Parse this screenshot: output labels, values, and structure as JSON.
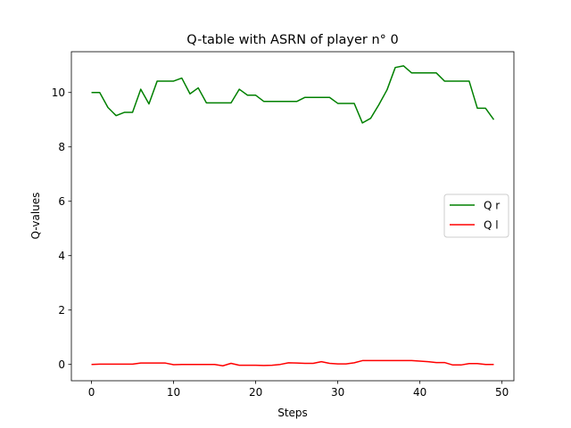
{
  "chart_data": {
    "type": "line",
    "title": "Q-table with ASRN of player n° 0",
    "xlabel": "Steps",
    "ylabel": "Q-values",
    "xlim": [
      -2.45,
      51.45
    ],
    "ylim": [
      -0.6,
      11.5
    ],
    "xticks": [
      0,
      10,
      20,
      30,
      40,
      50
    ],
    "yticks": [
      0,
      2,
      4,
      6,
      8,
      10
    ],
    "grid": false,
    "legend_position": "center-right",
    "x": [
      0,
      1,
      2,
      3,
      4,
      5,
      6,
      7,
      8,
      9,
      10,
      11,
      12,
      13,
      14,
      15,
      16,
      17,
      18,
      19,
      20,
      21,
      22,
      23,
      24,
      25,
      26,
      27,
      28,
      29,
      30,
      31,
      32,
      33,
      34,
      35,
      36,
      37,
      38,
      39,
      40,
      41,
      42,
      43,
      44,
      45,
      46,
      47,
      48,
      49
    ],
    "series": [
      {
        "name": "Q r",
        "color": "#008000",
        "values": [
          10.0,
          10.0,
          9.45,
          9.15,
          9.27,
          9.27,
          10.12,
          9.58,
          10.42,
          10.42,
          10.42,
          10.53,
          9.95,
          10.17,
          9.62,
          9.62,
          9.62,
          9.62,
          10.12,
          9.9,
          9.9,
          9.67,
          9.67,
          9.67,
          9.67,
          9.67,
          9.82,
          9.82,
          9.82,
          9.82,
          9.6,
          9.6,
          9.6,
          8.88,
          9.05,
          9.55,
          10.1,
          10.92,
          10.98,
          10.72,
          10.72,
          10.72,
          10.72,
          10.42,
          10.42,
          10.42,
          10.42,
          9.42,
          9.42,
          9.0
        ]
      },
      {
        "name": "Q l",
        "color": "#ff0000",
        "values": [
          0.0,
          0.01,
          0.01,
          0.01,
          0.01,
          0.01,
          0.05,
          0.05,
          0.05,
          0.05,
          -0.01,
          0.0,
          0.0,
          0.0,
          0.0,
          0.0,
          -0.05,
          0.04,
          -0.03,
          -0.03,
          -0.03,
          -0.04,
          -0.03,
          0.0,
          0.06,
          0.05,
          0.04,
          0.04,
          0.1,
          0.04,
          0.02,
          0.02,
          0.06,
          0.14,
          0.14,
          0.14,
          0.14,
          0.14,
          0.14,
          0.14,
          0.12,
          0.1,
          0.07,
          0.07,
          -0.02,
          -0.02,
          0.03,
          0.03,
          0.0,
          0.0
        ]
      }
    ]
  }
}
